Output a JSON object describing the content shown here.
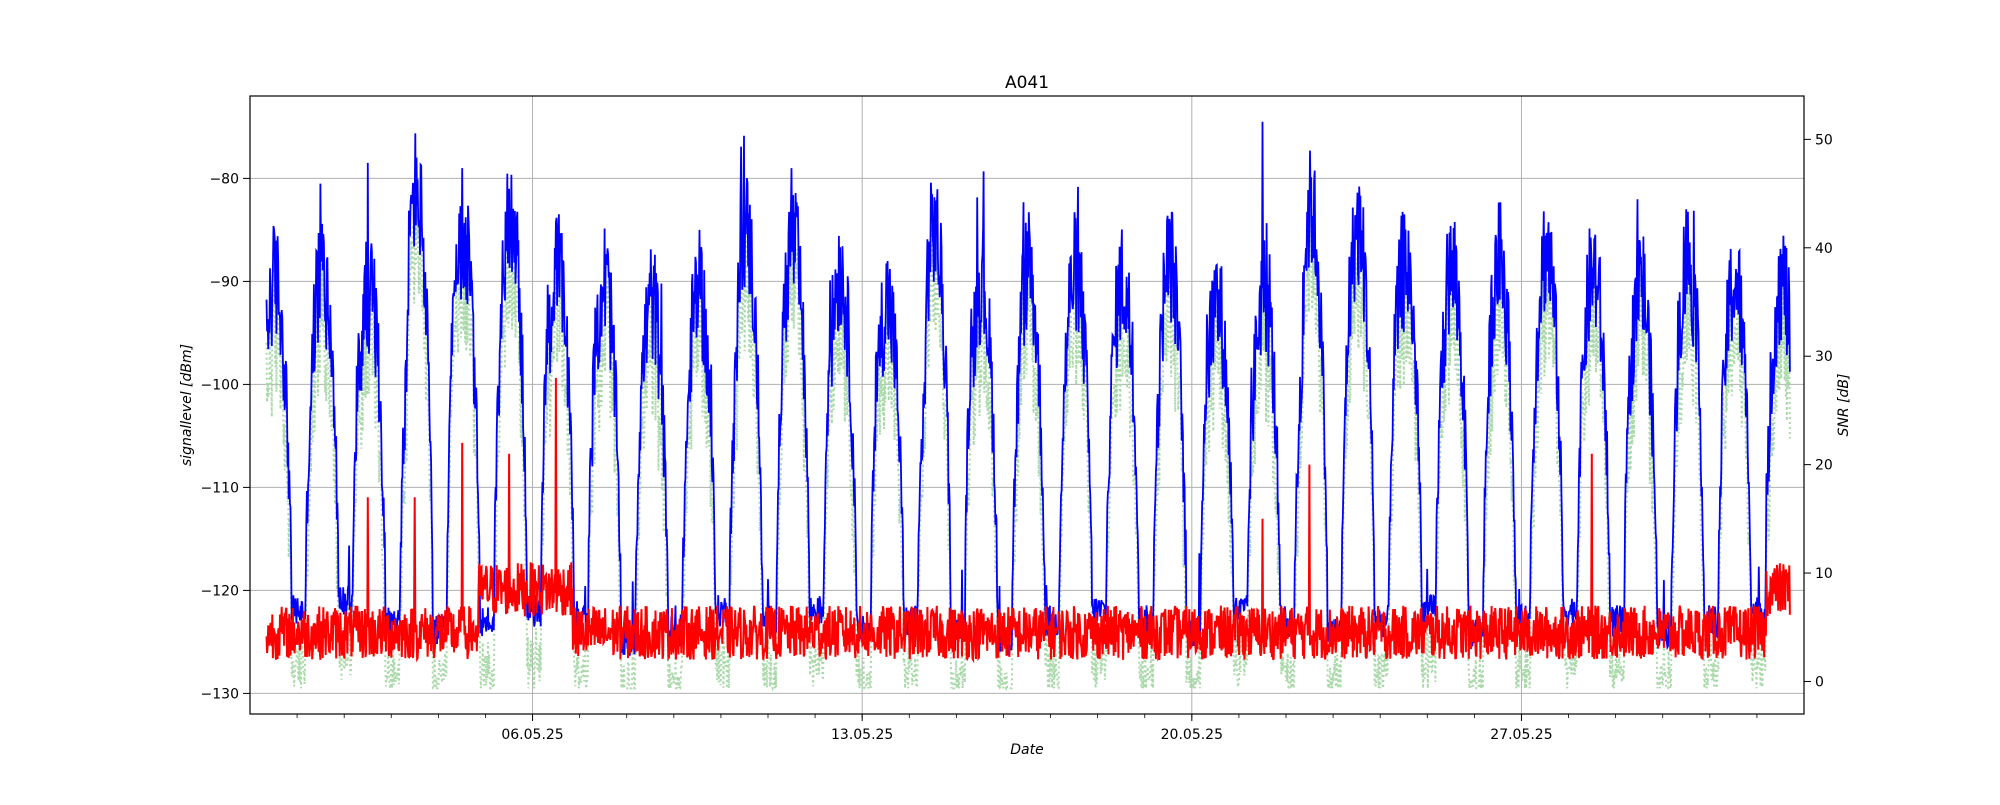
{
  "chart_data": {
    "type": "line",
    "title": "A041",
    "xlabel": "Date",
    "ylabel": "signallevel [dBm]",
    "ylabel_right": "SNR [dB]",
    "x_range": [
      "30.04.25",
      "02.06.25"
    ],
    "x_ticks": [
      "06.05.25",
      "13.05.25",
      "20.05.25",
      "27.05.25"
    ],
    "x_tick_values": [
      "06.05.25",
      "13.05.25",
      "20.05.25",
      "27.05.25"
    ],
    "ylim": [
      -132,
      -72
    ],
    "ylim_right": [
      -3,
      54
    ],
    "y_ticks": [
      -80,
      -90,
      -100,
      -110,
      -120,
      -130
    ],
    "y_ticks_right": [
      50,
      40,
      30,
      20,
      10,
      0
    ],
    "grid": true,
    "series": [
      {
        "axis": "left",
        "color": "#0000ff",
        "style": "solid",
        "day_peaks": [
          -90,
          -89,
          -91,
          -81,
          -86,
          -83,
          -89,
          -90,
          -92,
          -91,
          -85,
          -86,
          -89,
          -92,
          -85,
          -90,
          -89,
          -89,
          -90,
          -88,
          -92,
          -91,
          -83,
          -85,
          -88,
          -89,
          -88,
          -87,
          -89,
          -90,
          -88,
          -90
        ],
        "night_troughs": [
          -122,
          -121,
          -123,
          -124,
          -123,
          -122,
          -123,
          -125,
          -124,
          -122,
          -123,
          -122,
          -124,
          -123,
          -124,
          -125,
          -123,
          -122,
          -123,
          -124,
          -122,
          -123,
          -124,
          -123,
          -122,
          -124,
          -123,
          -122,
          -123,
          -124,
          -123,
          -122
        ],
        "spikes": [
          {
            "x": "01.05.25",
            "y": -80.5
          },
          {
            "x": "02.05.25",
            "y": -78.5
          },
          {
            "x": "04.05.25",
            "y": -79
          },
          {
            "x": "05.05.25",
            "y": -81
          },
          {
            "x": "11.05.25",
            "y": -79
          },
          {
            "x": "21.05.25",
            "y": -74.5
          },
          {
            "x": "22.05.25",
            "y": -84
          },
          {
            "x": "30.05.25",
            "y": -83
          }
        ]
      },
      {
        "axis": "right",
        "color": "#ff0000",
        "style": "solid",
        "baseline": 4.5,
        "spikes": [
          {
            "x": "02.05.25",
            "y": 17
          },
          {
            "x": "03.05.25",
            "y": 17
          },
          {
            "x": "04.05.25",
            "y": 22
          },
          {
            "x": "05.05.25",
            "y": 21
          },
          {
            "x": "06.05.25",
            "y": 28
          },
          {
            "x": "21.05.25",
            "y": 15
          },
          {
            "x": "22.05.25",
            "y": 20
          },
          {
            "x": "28.05.25",
            "y": 21
          }
        ]
      },
      {
        "axis": "left",
        "color": "#a9d8a9",
        "style": "dotted",
        "follows": "blue",
        "offset_dB": -3
      }
    ]
  }
}
